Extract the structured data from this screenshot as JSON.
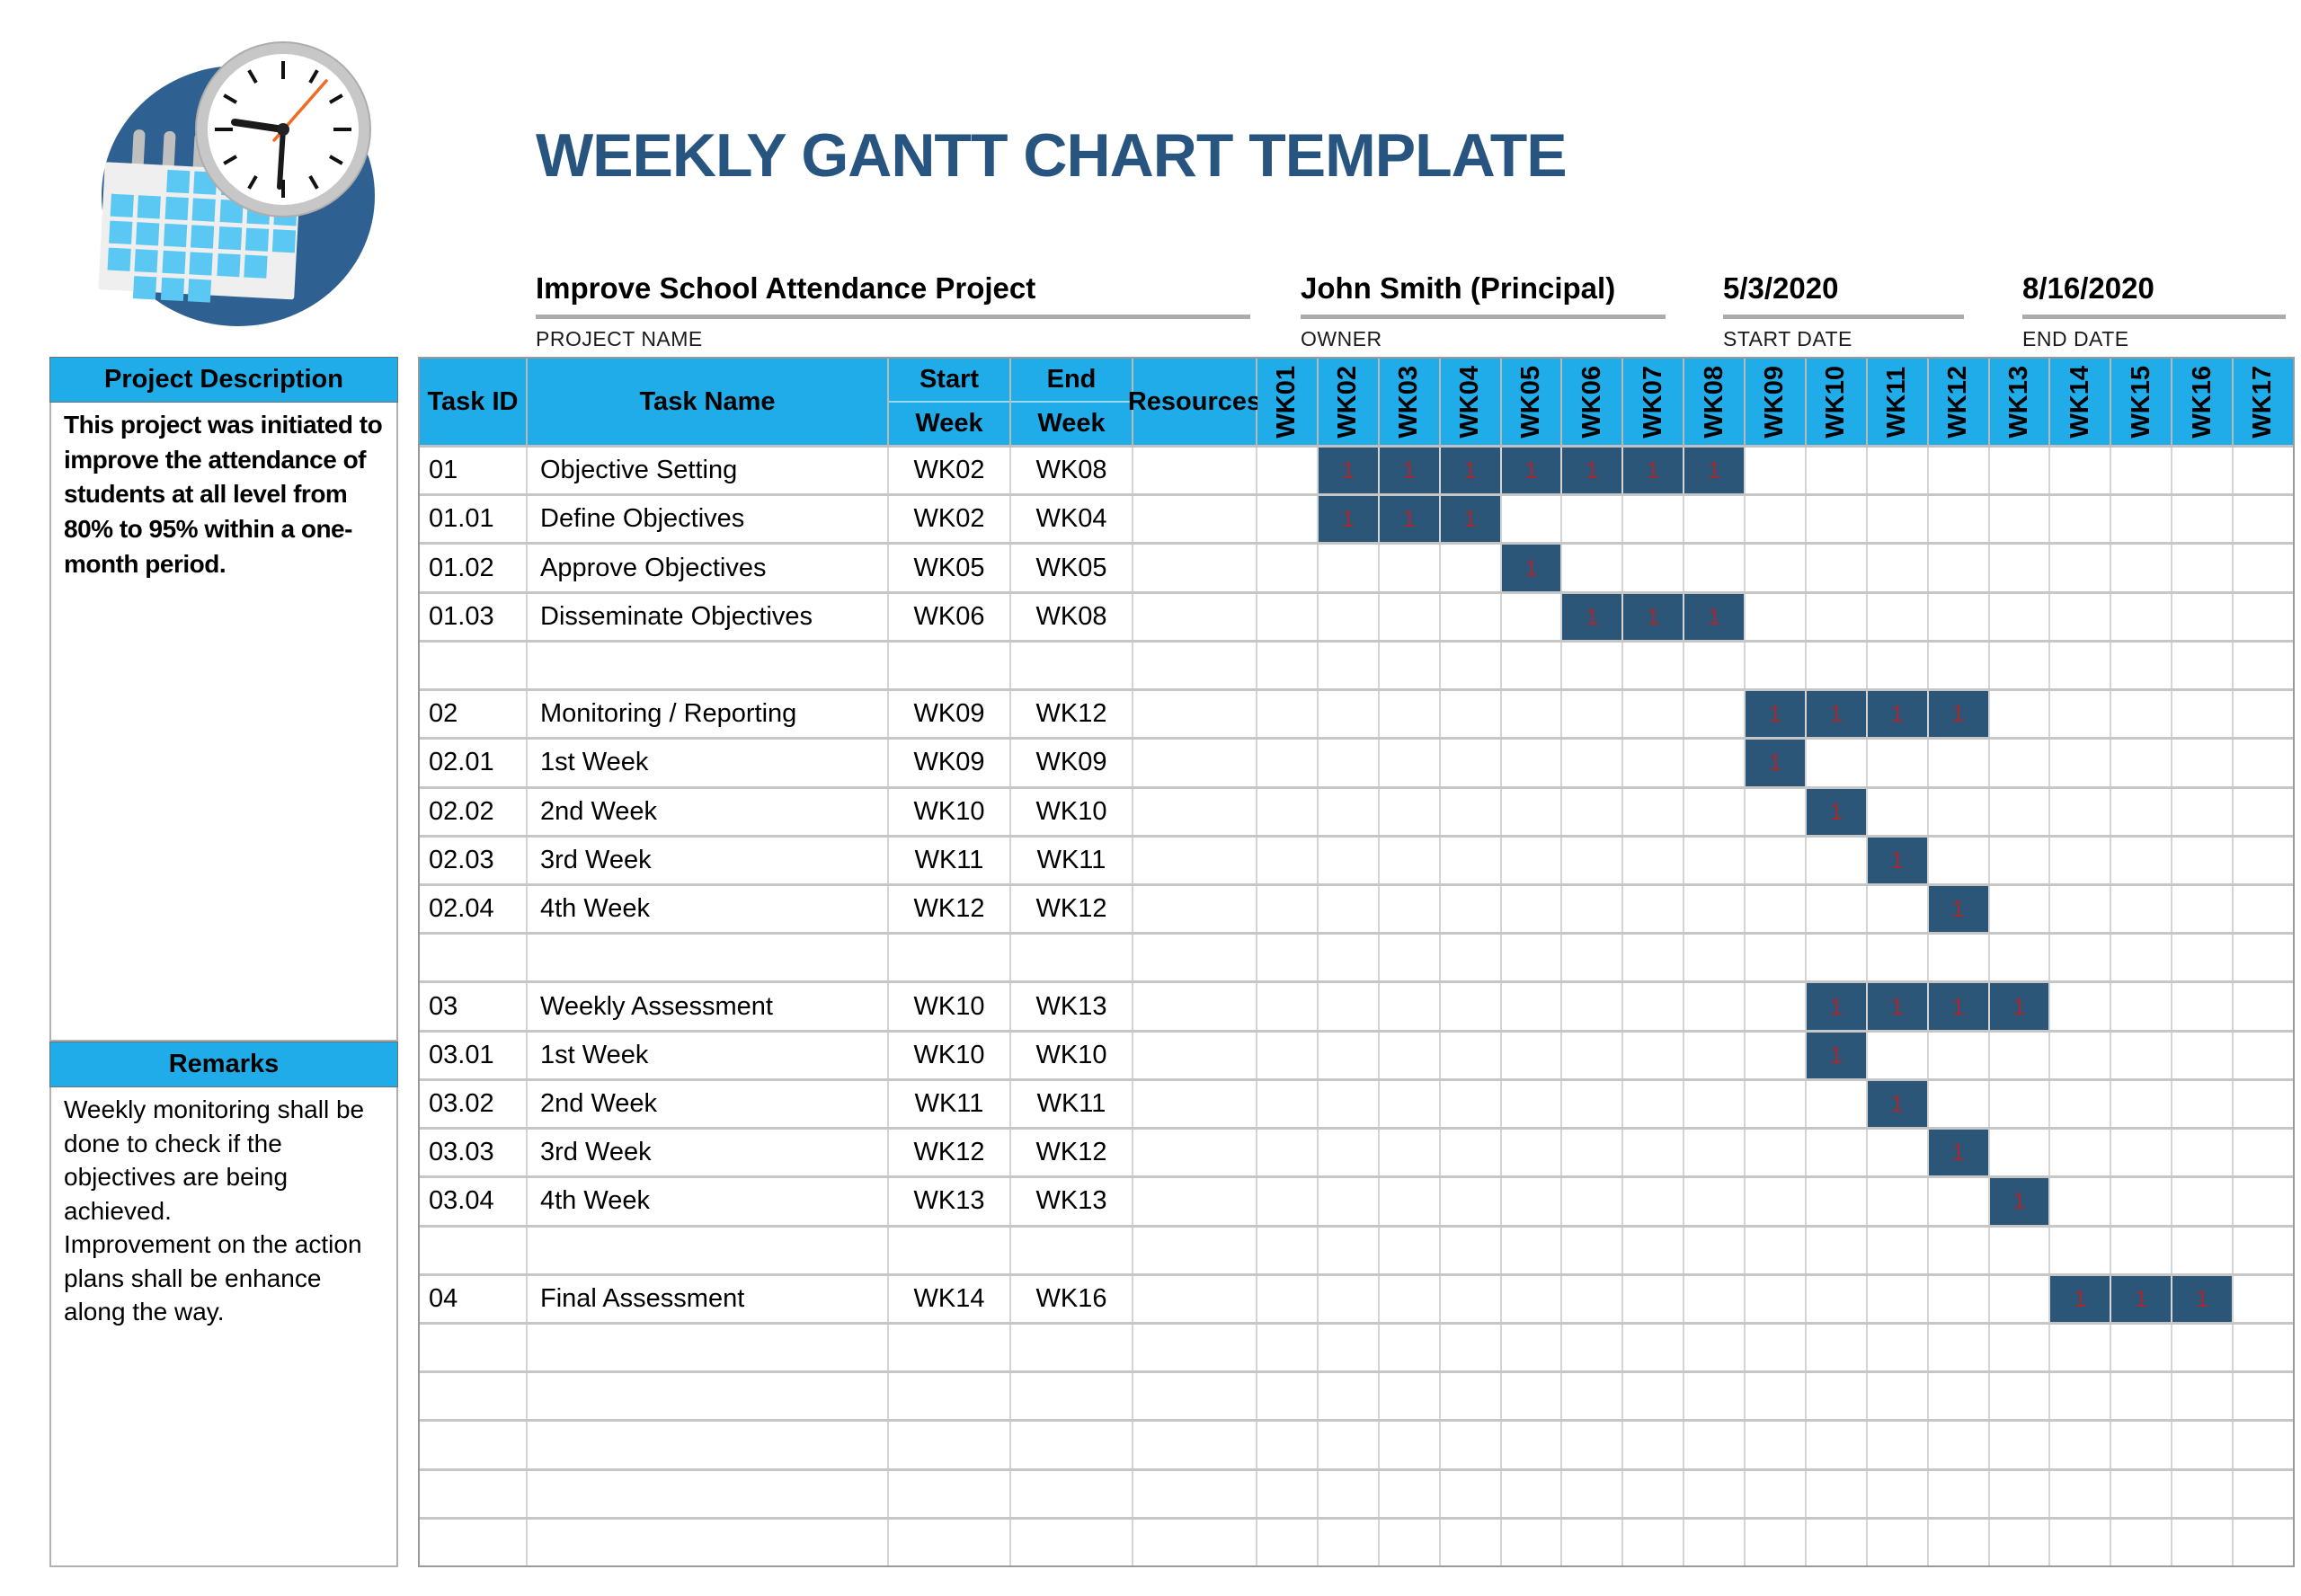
{
  "header": {
    "title": "WEEKLY GANTT CHART TEMPLATE"
  },
  "logo": {
    "name": "calendar-clock-logo"
  },
  "fields": [
    {
      "value": "Improve School Attendance Project",
      "label": "PROJECT NAME"
    },
    {
      "value": "John Smith (Principal)",
      "label": "OWNER"
    },
    {
      "value": "5/3/2020",
      "label": "START DATE"
    },
    {
      "value": "8/16/2020",
      "label": "END DATE"
    }
  ],
  "sidebar": {
    "description": {
      "header": "Project Description",
      "body": "This project was initiated to improve the attendance of students at all level from 80% to 95% within a one-month period."
    },
    "remarks": {
      "header": "Remarks",
      "lines": [
        "Weekly monitoring shall be done to check if the objectives are being achieved.",
        "Improvement on the action plans shall be enhance along the way."
      ]
    }
  },
  "table": {
    "headers": {
      "task_id": "Task ID",
      "task_name": "Task Name",
      "start_top": "Start",
      "start_bottom": "Week",
      "end_top": "End",
      "end_bottom": "Week",
      "resources": "Resources"
    },
    "weeks": [
      "WK01",
      "WK02",
      "WK03",
      "WK04",
      "WK05",
      "WK06",
      "WK07",
      "WK08",
      "WK09",
      "WK10",
      "WK11",
      "WK12",
      "WK13",
      "WK14",
      "WK15",
      "WK16",
      "WK17"
    ],
    "bar_label": "1",
    "rows": [
      {
        "id": "01",
        "name": "Objective Setting",
        "start": "WK02",
        "end": "WK08",
        "bar": [
          2,
          8
        ]
      },
      {
        "id": "01.01",
        "name": "Define Objectives",
        "start": "WK02",
        "end": "WK04",
        "bar": [
          2,
          4
        ]
      },
      {
        "id": "01.02",
        "name": "Approve Objectives",
        "start": "WK05",
        "end": "WK05",
        "bar": [
          5,
          5
        ]
      },
      {
        "id": "01.03",
        "name": "Disseminate Objectives",
        "start": "WK06",
        "end": "WK08",
        "bar": [
          6,
          8
        ]
      },
      {
        "id": "",
        "name": "",
        "start": "",
        "end": "",
        "bar": null
      },
      {
        "id": "02",
        "name": "Monitoring / Reporting",
        "start": "WK09",
        "end": "WK12",
        "bar": [
          9,
          12
        ]
      },
      {
        "id": "02.01",
        "name": "1st Week",
        "start": "WK09",
        "end": "WK09",
        "bar": [
          9,
          9
        ]
      },
      {
        "id": "02.02",
        "name": "2nd Week",
        "start": "WK10",
        "end": "WK10",
        "bar": [
          10,
          10
        ]
      },
      {
        "id": "02.03",
        "name": "3rd Week",
        "start": "WK11",
        "end": "WK11",
        "bar": [
          11,
          11
        ]
      },
      {
        "id": "02.04",
        "name": "4th Week",
        "start": "WK12",
        "end": "WK12",
        "bar": [
          12,
          12
        ]
      },
      {
        "id": "",
        "name": "",
        "start": "",
        "end": "",
        "bar": null
      },
      {
        "id": "03",
        "name": "Weekly Assessment",
        "start": "WK10",
        "end": "WK13",
        "bar": [
          10,
          13
        ]
      },
      {
        "id": "03.01",
        "name": "1st Week",
        "start": "WK10",
        "end": "WK10",
        "bar": [
          10,
          10
        ]
      },
      {
        "id": "03.02",
        "name": "2nd Week",
        "start": "WK11",
        "end": "WK11",
        "bar": [
          11,
          11
        ]
      },
      {
        "id": "03.03",
        "name": "3rd Week",
        "start": "WK12",
        "end": "WK12",
        "bar": [
          12,
          12
        ]
      },
      {
        "id": "03.04",
        "name": "4th Week",
        "start": "WK13",
        "end": "WK13",
        "bar": [
          13,
          13
        ]
      },
      {
        "id": "",
        "name": "",
        "start": "",
        "end": "",
        "bar": null
      },
      {
        "id": "04",
        "name": "Final Assessment",
        "start": "WK14",
        "end": "WK16",
        "bar": [
          14,
          16
        ]
      },
      {
        "id": "",
        "name": "",
        "start": "",
        "end": "",
        "bar": null
      },
      {
        "id": "",
        "name": "",
        "start": "",
        "end": "",
        "bar": null
      },
      {
        "id": "",
        "name": "",
        "start": "",
        "end": "",
        "bar": null
      },
      {
        "id": "",
        "name": "",
        "start": "",
        "end": "",
        "bar": null
      },
      {
        "id": "",
        "name": "",
        "start": "",
        "end": "",
        "bar": null
      }
    ]
  },
  "colors": {
    "accent_cyan": "#20ace8",
    "title_blue": "#275580",
    "gantt_bar": "#2b5677",
    "bar_value_red": "#a12a33",
    "underline_gray": "#ababab",
    "logo_circle_blue": "#2e6191",
    "logo_square_blue": "#5bc8f3",
    "second_hand_orange": "#f26a21"
  },
  "chart_data": {
    "type": "table",
    "subtype": "gantt",
    "title": "WEEKLY GANTT CHART TEMPLATE",
    "x_categories": [
      "WK01",
      "WK02",
      "WK03",
      "WK04",
      "WK05",
      "WK06",
      "WK07",
      "WK08",
      "WK09",
      "WK10",
      "WK11",
      "WK12",
      "WK13",
      "WK14",
      "WK15",
      "WK16",
      "WK17"
    ],
    "cell_value": "1",
    "tasks": [
      {
        "id": "01",
        "name": "Objective Setting",
        "start": "WK02",
        "end": "WK08"
      },
      {
        "id": "01.01",
        "name": "Define Objectives",
        "start": "WK02",
        "end": "WK04"
      },
      {
        "id": "01.02",
        "name": "Approve Objectives",
        "start": "WK05",
        "end": "WK05"
      },
      {
        "id": "01.03",
        "name": "Disseminate Objectives",
        "start": "WK06",
        "end": "WK08"
      },
      {
        "id": "02",
        "name": "Monitoring / Reporting",
        "start": "WK09",
        "end": "WK12"
      },
      {
        "id": "02.01",
        "name": "1st Week",
        "start": "WK09",
        "end": "WK09"
      },
      {
        "id": "02.02",
        "name": "2nd Week",
        "start": "WK10",
        "end": "WK10"
      },
      {
        "id": "02.03",
        "name": "3rd Week",
        "start": "WK11",
        "end": "WK11"
      },
      {
        "id": "02.04",
        "name": "4th Week",
        "start": "WK12",
        "end": "WK12"
      },
      {
        "id": "03",
        "name": "Weekly Assessment",
        "start": "WK10",
        "end": "WK13"
      },
      {
        "id": "03.01",
        "name": "1st Week",
        "start": "WK10",
        "end": "WK10"
      },
      {
        "id": "03.02",
        "name": "2nd Week",
        "start": "WK11",
        "end": "WK11"
      },
      {
        "id": "03.03",
        "name": "3rd Week",
        "start": "WK12",
        "end": "WK12"
      },
      {
        "id": "03.04",
        "name": "4th Week",
        "start": "WK13",
        "end": "WK13"
      },
      {
        "id": "04",
        "name": "Final Assessment",
        "start": "WK14",
        "end": "WK16"
      }
    ]
  }
}
